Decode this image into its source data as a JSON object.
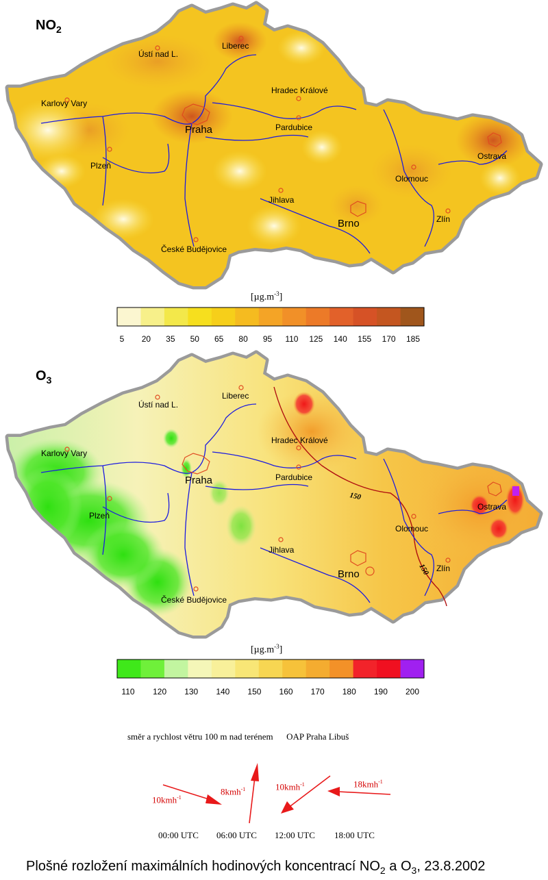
{
  "no2": {
    "title_main": "NO",
    "title_sub": "2",
    "unit_main": "[µg.m",
    "unit_sup": "-3",
    "unit_end": "]",
    "scale_colors": [
      "#fbf6d0",
      "#f7f08a",
      "#f3e84a",
      "#f6df1e",
      "#f6cf1a",
      "#f5bb20",
      "#f4a426",
      "#f19028",
      "#ec7a28",
      "#e2612a",
      "#d65226",
      "#c45620",
      "#a0561c"
    ],
    "ticks": [
      "5",
      "20",
      "35",
      "50",
      "65",
      "80",
      "95",
      "110",
      "125",
      "140",
      "155",
      "170",
      "185"
    ]
  },
  "o3": {
    "title_main": "O",
    "title_sub": "3",
    "unit_main": "[µg.m",
    "unit_sup": "-3",
    "unit_end": "]",
    "scale_colors": [
      "#3fe81a",
      "#6ff03a",
      "#c2f5a0",
      "#f4f6b8",
      "#f8f09a",
      "#f8e676",
      "#f7d652",
      "#f6c23a",
      "#f4ac30",
      "#f39128",
      "#f2232a",
      "#f01020",
      "#a020f0"
    ],
    "ticks": [
      "110",
      "120",
      "130",
      "140",
      "150",
      "160",
      "170",
      "180",
      "190",
      "200"
    ],
    "isoline_label": "150"
  },
  "cities": {
    "liberec": "Liberec",
    "usti": "Ústí nad L.",
    "karlovy_vary": "Karlovy Vary",
    "hradec": "Hradec Králové",
    "praha": "Praha",
    "pardubice": "Pardubice",
    "plzen": "Plzeň",
    "ostrava": "Ostrava",
    "olomouc": "Olomouc",
    "jihlava": "Jihlava",
    "brno": "Brno",
    "zlin": "Zlín",
    "budejovice": "České Budějovice"
  },
  "wind": {
    "note": "směr a rychlost větru 100 m nad terénem      OAP Praha Libuš",
    "speeds": [
      {
        "value": "10kmh",
        "sup": "-1"
      },
      {
        "value": "8kmh",
        "sup": "-1"
      },
      {
        "value": "10kmh",
        "sup": "-1"
      },
      {
        "value": "18kmh",
        "sup": "-1"
      }
    ],
    "times": [
      "00:00  UTC",
      "06:00  UTC",
      "12:00  UTC",
      "18:00  UTC"
    ]
  },
  "caption": {
    "part1": "Plošné rozložení maximálních hodinových koncentrací NO",
    "sub1": "2",
    "part2": " a O",
    "sub2": "3",
    "part3": ", 23.8.2002"
  }
}
